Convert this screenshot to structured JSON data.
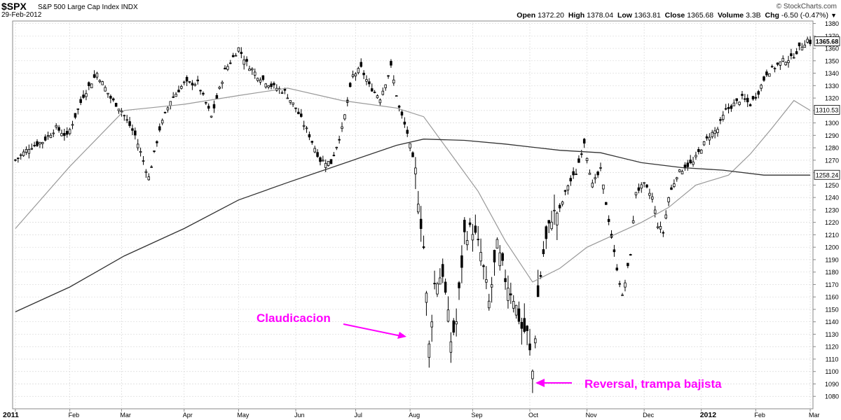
{
  "header": {
    "symbol": "$SPX",
    "name": "S&P 500 Large Cap Index  INDX",
    "date": "29-Feb-2012",
    "brand": "© StockCharts.com",
    "open_label": "Open",
    "open": "1372.20",
    "high_label": "High",
    "high": "1378.04",
    "low_label": "Low",
    "low": "1363.81",
    "close_label": "Close",
    "close": "1365.68",
    "volume_label": "Volume",
    "volume": "3.3B",
    "chg_label": "Chg",
    "chg": "-6.50 (-0.47%)",
    "menu_icon": "triangle-down-icon"
  },
  "chart_data": {
    "type": "candlestick",
    "ylim": [
      1070,
      1382
    ],
    "yticks": [
      1080,
      1090,
      1100,
      1110,
      1120,
      1130,
      1140,
      1150,
      1160,
      1170,
      1180,
      1190,
      1200,
      1210,
      1220,
      1230,
      1240,
      1250,
      1260,
      1270,
      1280,
      1290,
      1300,
      1310,
      1320,
      1330,
      1340,
      1350,
      1360,
      1370,
      1380
    ],
    "xticks": [
      {
        "label": "2011",
        "bold": true,
        "idx": 0
      },
      {
        "label": "Feb",
        "idx": 20
      },
      {
        "label": "Mar",
        "idx": 39
      },
      {
        "label": "Apr",
        "idx": 62
      },
      {
        "label": "May",
        "idx": 82
      },
      {
        "label": "Jun",
        "idx": 103
      },
      {
        "label": "Jul",
        "idx": 125
      },
      {
        "label": "Aug",
        "idx": 145
      },
      {
        "label": "Sep",
        "idx": 168
      },
      {
        "label": "Oct",
        "idx": 189
      },
      {
        "label": "Nov",
        "idx": 210
      },
      {
        "label": "Dec",
        "idx": 231
      },
      {
        "label": "2012",
        "bold": true,
        "idx": 252
      },
      {
        "label": "Feb",
        "idx": 272
      },
      {
        "label": "Mar",
        "idx": 292
      }
    ],
    "price_label": "1365.68",
    "ma50_label": "1310.53",
    "ma200_label": "1258.24",
    "close_anchors": [
      [
        0,
        1270
      ],
      [
        5,
        1280
      ],
      [
        10,
        1285
      ],
      [
        15,
        1296
      ],
      [
        19,
        1289
      ],
      [
        25,
        1322
      ],
      [
        30,
        1340
      ],
      [
        35,
        1320
      ],
      [
        39,
        1310
      ],
      [
        44,
        1290
      ],
      [
        49,
        1256
      ],
      [
        53,
        1295
      ],
      [
        57,
        1318
      ],
      [
        62,
        1332
      ],
      [
        67,
        1332
      ],
      [
        72,
        1305
      ],
      [
        77,
        1342
      ],
      [
        82,
        1360
      ],
      [
        85,
        1348
      ],
      [
        89,
        1338
      ],
      [
        94,
        1330
      ],
      [
        99,
        1325
      ],
      [
        103,
        1312
      ],
      [
        108,
        1290
      ],
      [
        112,
        1270
      ],
      [
        116,
        1268
      ],
      [
        120,
        1295
      ],
      [
        124,
        1338
      ],
      [
        127,
        1344
      ],
      [
        130,
        1330
      ],
      [
        134,
        1320
      ],
      [
        138,
        1345
      ],
      [
        141,
        1312
      ],
      [
        144,
        1292
      ],
      [
        147,
        1260
      ],
      [
        150,
        1200
      ],
      [
        152,
        1120
      ],
      [
        154,
        1170
      ],
      [
        157,
        1180
      ],
      [
        160,
        1125
      ],
      [
        162,
        1140
      ],
      [
        165,
        1210
      ],
      [
        168,
        1215
      ],
      [
        171,
        1195
      ],
      [
        174,
        1155
      ],
      [
        177,
        1200
      ],
      [
        180,
        1175
      ],
      [
        183,
        1160
      ],
      [
        186,
        1135
      ],
      [
        188,
        1130
      ],
      [
        190,
        1100
      ],
      [
        192,
        1160
      ],
      [
        194,
        1195
      ],
      [
        197,
        1225
      ],
      [
        200,
        1230
      ],
      [
        203,
        1250
      ],
      [
        206,
        1260
      ],
      [
        209,
        1285
      ],
      [
        212,
        1250
      ],
      [
        215,
        1262
      ],
      [
        218,
        1222
      ],
      [
        220,
        1195
      ],
      [
        223,
        1160
      ],
      [
        226,
        1195
      ],
      [
        228,
        1245
      ],
      [
        231,
        1250
      ],
      [
        234,
        1240
      ],
      [
        236,
        1218
      ],
      [
        238,
        1212
      ],
      [
        240,
        1240
      ],
      [
        243,
        1258
      ],
      [
        246,
        1265
      ],
      [
        249,
        1268
      ],
      [
        252,
        1280
      ],
      [
        255,
        1290
      ],
      [
        258,
        1295
      ],
      [
        261,
        1310
      ],
      [
        264,
        1315
      ],
      [
        267,
        1320
      ],
      [
        270,
        1315
      ],
      [
        273,
        1325
      ],
      [
        276,
        1340
      ],
      [
        279,
        1345
      ],
      [
        282,
        1350
      ],
      [
        285,
        1352
      ],
      [
        288,
        1360
      ],
      [
        291,
        1367
      ],
      [
        292,
        1365
      ]
    ],
    "ma50": [
      [
        0,
        1215
      ],
      [
        20,
        1265
      ],
      [
        40,
        1310
      ],
      [
        62,
        1315
      ],
      [
        82,
        1322
      ],
      [
        100,
        1328
      ],
      [
        120,
        1318
      ],
      [
        140,
        1312
      ],
      [
        150,
        1305
      ],
      [
        160,
        1275
      ],
      [
        170,
        1245
      ],
      [
        180,
        1205
      ],
      [
        190,
        1172
      ],
      [
        200,
        1183
      ],
      [
        210,
        1200
      ],
      [
        220,
        1210
      ],
      [
        230,
        1220
      ],
      [
        240,
        1232
      ],
      [
        250,
        1250
      ],
      [
        262,
        1258
      ],
      [
        270,
        1275
      ],
      [
        278,
        1296
      ],
      [
        286,
        1318
      ],
      [
        292,
        1310
      ]
    ],
    "ma200": [
      [
        0,
        1148
      ],
      [
        20,
        1168
      ],
      [
        40,
        1193
      ],
      [
        62,
        1215
      ],
      [
        82,
        1238
      ],
      [
        100,
        1252
      ],
      [
        120,
        1267
      ],
      [
        140,
        1282
      ],
      [
        150,
        1287
      ],
      [
        165,
        1286
      ],
      [
        180,
        1283
      ],
      [
        200,
        1278
      ],
      [
        215,
        1276
      ],
      [
        230,
        1268
      ],
      [
        245,
        1264
      ],
      [
        260,
        1262
      ],
      [
        275,
        1258
      ],
      [
        292,
        1258
      ]
    ],
    "annotations": [
      {
        "text": "Claudicacion",
        "color": "#ff00ff"
      },
      {
        "text": "Reversal, trampa bajista",
        "color": "#ff00ff"
      }
    ]
  },
  "colors": {
    "annotation": "#ff00ff",
    "ma50": "#999999",
    "ma200": "#333333",
    "candle": "#000000",
    "grid": "#d9d9d9"
  }
}
